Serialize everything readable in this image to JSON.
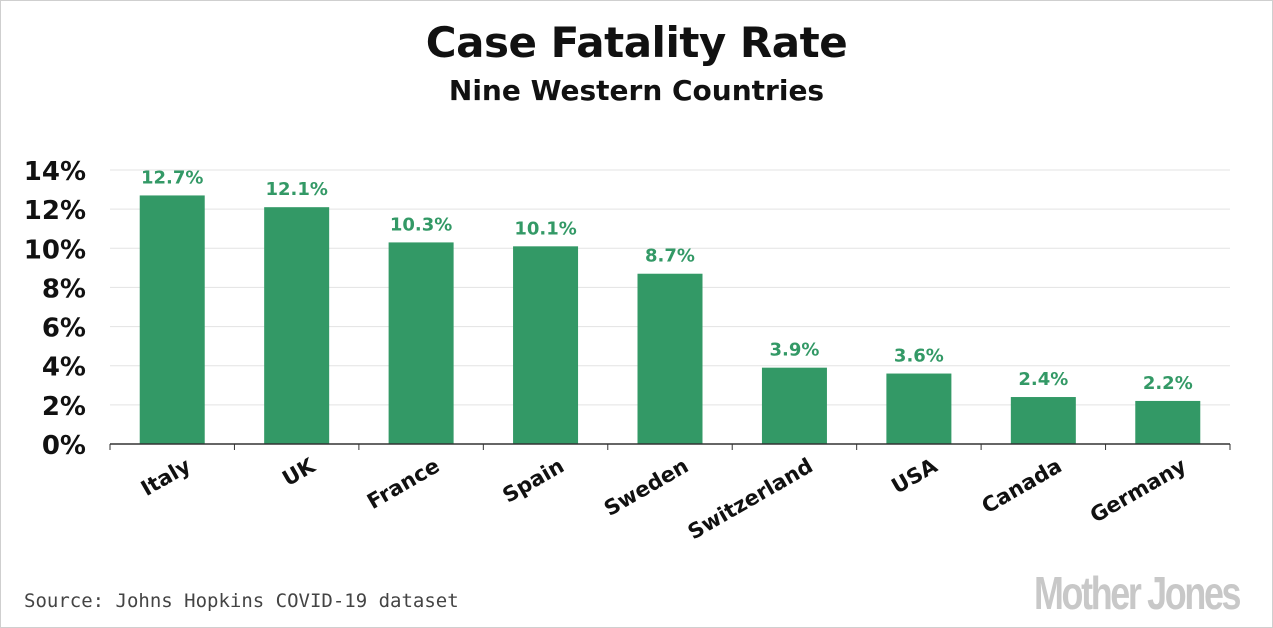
{
  "colors": {
    "bar": "#339966",
    "label": "#339966",
    "grid": "#e3e3e3",
    "axis": "#333333"
  },
  "footer": {
    "source": "Source: Johns Hopkins COVID-19 dataset",
    "brand": "Mother Jones"
  },
  "chart_data": {
    "type": "bar",
    "title": "Case Fatality Rate",
    "subtitle": "Nine Western Countries",
    "xlabel": "",
    "ylabel": "",
    "categories": [
      "Italy",
      "UK",
      "France",
      "Spain",
      "Sweden",
      "Switzerland",
      "USA",
      "Canada",
      "Germany"
    ],
    "values": [
      12.7,
      12.1,
      10.3,
      10.1,
      8.7,
      3.9,
      3.6,
      2.4,
      2.2
    ],
    "value_labels": [
      "12.7%",
      "12.1%",
      "10.3%",
      "10.1%",
      "8.7%",
      "3.9%",
      "3.6%",
      "2.4%",
      "2.2%"
    ],
    "ylim": [
      0,
      14
    ],
    "yticks": [
      0,
      2,
      4,
      6,
      8,
      10,
      12,
      14
    ],
    "ytick_labels": [
      "0%",
      "2%",
      "4%",
      "6%",
      "8%",
      "10%",
      "12%",
      "14%"
    ],
    "grid": true,
    "legend": "none"
  }
}
